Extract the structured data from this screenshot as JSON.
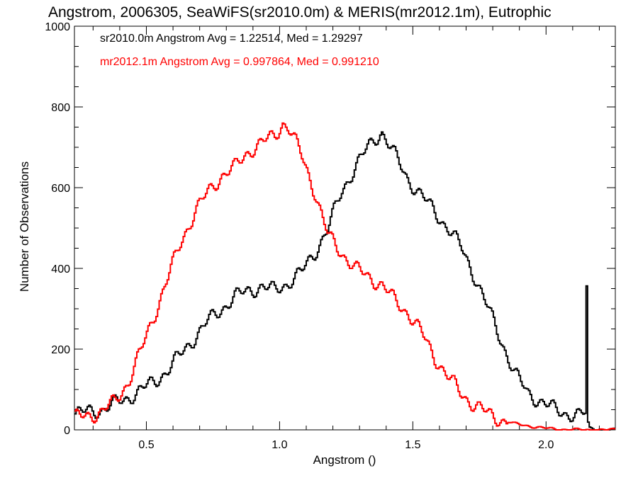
{
  "chart_data": {
    "type": "line",
    "title": "Angstrom, 2006305, SeaWiFS(sr2010.0m) & MERIS(mr2012.1m), Eutrophic",
    "xlabel": "Angstrom ()",
    "ylabel": "Number of Observations",
    "xlim": [
      0.23,
      2.26
    ],
    "ylim": [
      0,
      1000
    ],
    "x_ticks": [
      0.5,
      1.0,
      1.5,
      2.0
    ],
    "x_tick_labels": [
      "0.5",
      "1.0",
      "1.5",
      "2.0"
    ],
    "y_ticks": [
      0,
      200,
      400,
      600,
      800,
      1000
    ],
    "y_tick_labels": [
      "0",
      "200",
      "400",
      "600",
      "800",
      "1000"
    ],
    "grid": false,
    "annotations": [
      {
        "text": "sr2010.0m Angstrom Avg = 1.22514, Med = 1.29297",
        "color": "#000000"
      },
      {
        "text": "mr2012.1m Angstrom Avg = 0.997864, Med = 0.991210",
        "color": "#ff0000"
      }
    ],
    "series": [
      {
        "color": "#000000",
        "x": [
          0.23,
          0.28,
          0.33,
          0.38,
          0.43,
          0.48,
          0.53,
          0.58,
          0.63,
          0.68,
          0.73,
          0.78,
          0.83,
          0.88,
          0.93,
          0.98,
          1.03,
          1.08,
          1.13,
          1.18,
          1.23,
          1.28,
          1.33,
          1.38,
          1.43,
          1.48,
          1.53,
          1.58,
          1.63,
          1.68,
          1.73,
          1.78,
          1.83,
          1.88,
          1.93,
          1.98,
          2.03,
          2.08,
          2.12,
          2.145,
          2.15,
          2.155,
          2.16,
          2.2,
          2.26
        ],
        "y": [
          40,
          45,
          50,
          65,
          80,
          100,
          120,
          150,
          190,
          230,
          270,
          300,
          330,
          345,
          355,
          345,
          365,
          390,
          440,
          500,
          590,
          650,
          700,
          740,
          680,
          620,
          580,
          540,
          500,
          450,
          380,
          300,
          220,
          140,
          90,
          70,
          50,
          40,
          35,
          40,
          350,
          20,
          5,
          0,
          0
        ]
      },
      {
        "color": "#ff0000",
        "x": [
          0.23,
          0.28,
          0.33,
          0.38,
          0.43,
          0.48,
          0.53,
          0.58,
          0.63,
          0.68,
          0.73,
          0.78,
          0.83,
          0.88,
          0.93,
          0.98,
          1.01,
          1.03,
          1.08,
          1.13,
          1.16,
          1.18,
          1.23,
          1.28,
          1.33,
          1.38,
          1.43,
          1.48,
          1.53,
          1.58,
          1.63,
          1.68,
          1.73,
          1.78,
          1.83,
          1.88,
          1.93,
          1.98,
          2.03,
          2.08,
          2.13,
          2.18,
          2.26
        ],
        "y": [
          30,
          35,
          45,
          70,
          120,
          200,
          290,
          380,
          470,
          540,
          590,
          630,
          650,
          690,
          710,
          730,
          760,
          750,
          680,
          590,
          520,
          480,
          440,
          400,
          380,
          360,
          320,
          290,
          240,
          180,
          130,
          90,
          60,
          40,
          25,
          15,
          10,
          5,
          2,
          1,
          0,
          0,
          0
        ]
      }
    ]
  }
}
